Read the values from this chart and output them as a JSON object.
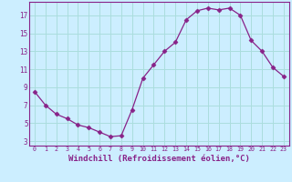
{
  "x": [
    0,
    1,
    2,
    3,
    4,
    5,
    6,
    7,
    8,
    9,
    10,
    11,
    12,
    13,
    14,
    15,
    16,
    17,
    18,
    19,
    20,
    21,
    22,
    23
  ],
  "y": [
    8.5,
    7.0,
    6.0,
    5.5,
    4.8,
    4.5,
    4.0,
    3.5,
    3.6,
    6.5,
    10.0,
    11.5,
    13.0,
    14.0,
    16.5,
    17.5,
    17.8,
    17.6,
    17.8,
    17.0,
    14.2,
    13.0,
    11.2,
    10.2
  ],
  "line_color": "#882288",
  "marker": "D",
  "marker_size": 2.5,
  "bg_color": "#cceeff",
  "grid_color": "#aadddd",
  "xlabel": "Windchill (Refroidissement éolien,°C)",
  "xlabel_fontsize": 6.5,
  "yticks": [
    3,
    5,
    7,
    9,
    11,
    13,
    15,
    17
  ],
  "xticks": [
    0,
    1,
    2,
    3,
    4,
    5,
    6,
    7,
    8,
    9,
    10,
    11,
    12,
    13,
    14,
    15,
    16,
    17,
    18,
    19,
    20,
    21,
    22,
    23
  ],
  "ylim": [
    2.5,
    18.5
  ],
  "xlim": [
    -0.5,
    23.5
  ]
}
